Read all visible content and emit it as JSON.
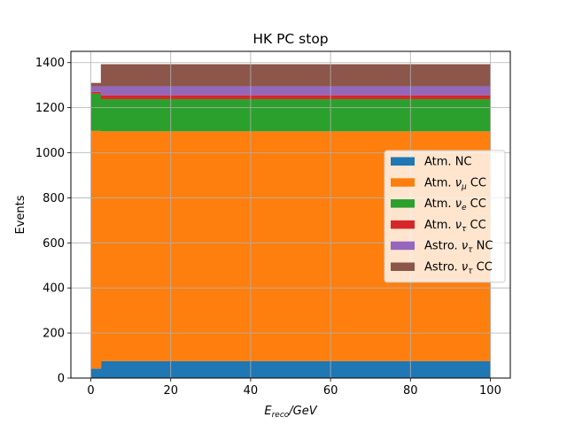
{
  "chart_data": {
    "type": "area",
    "title": "HK PC stop",
    "xlabel": {
      "main": "E",
      "sub": "reco",
      "rest": "/GeV"
    },
    "ylabel": "Events",
    "xlim": [
      -5,
      105
    ],
    "ylim": [
      0,
      1450
    ],
    "xticks": [
      0,
      20,
      40,
      60,
      80,
      100
    ],
    "yticks": [
      0,
      200,
      400,
      600,
      800,
      1000,
      1200,
      1400
    ],
    "grid": true,
    "legend_position": "center-right",
    "bin_edges": [
      0,
      2.5,
      100
    ],
    "series": [
      {
        "name": "Atm. NC",
        "color": "#1f77b4",
        "values": [
          42,
          75
        ],
        "label": {
          "prefix": "Atm. NC",
          "nu": "",
          "sub": "",
          "suffix": ""
        }
      },
      {
        "name": "Atm. νμ CC",
        "color": "#ff7f0e",
        "values": [
          1055,
          1020
        ],
        "label": {
          "prefix": "Atm. ",
          "nu": "ν",
          "sub": "μ",
          "suffix": " CC"
        }
      },
      {
        "name": "Atm. νe CC",
        "color": "#2ca02c",
        "values": [
          165,
          143
        ],
        "label": {
          "prefix": "Atm. ",
          "nu": "ν",
          "sub": "e",
          "suffix": " CC"
        }
      },
      {
        "name": "Atm. ντ CC",
        "color": "#d62728",
        "values": [
          8,
          17
        ],
        "label": {
          "prefix": "Atm. ",
          "nu": "ν",
          "sub": "τ",
          "suffix": " CC"
        }
      },
      {
        "name": "Astro. ντ NC",
        "color": "#9467bd",
        "values": [
          25,
          40
        ],
        "label": {
          "prefix": "Astro. ",
          "nu": "ν",
          "sub": "τ",
          "suffix": " NC"
        }
      },
      {
        "name": "Astro. ντ CC",
        "color": "#8c564b",
        "values": [
          15,
          98
        ],
        "label": {
          "prefix": "Astro. ",
          "nu": "ν",
          "sub": "τ",
          "suffix": " CC"
        }
      }
    ]
  }
}
